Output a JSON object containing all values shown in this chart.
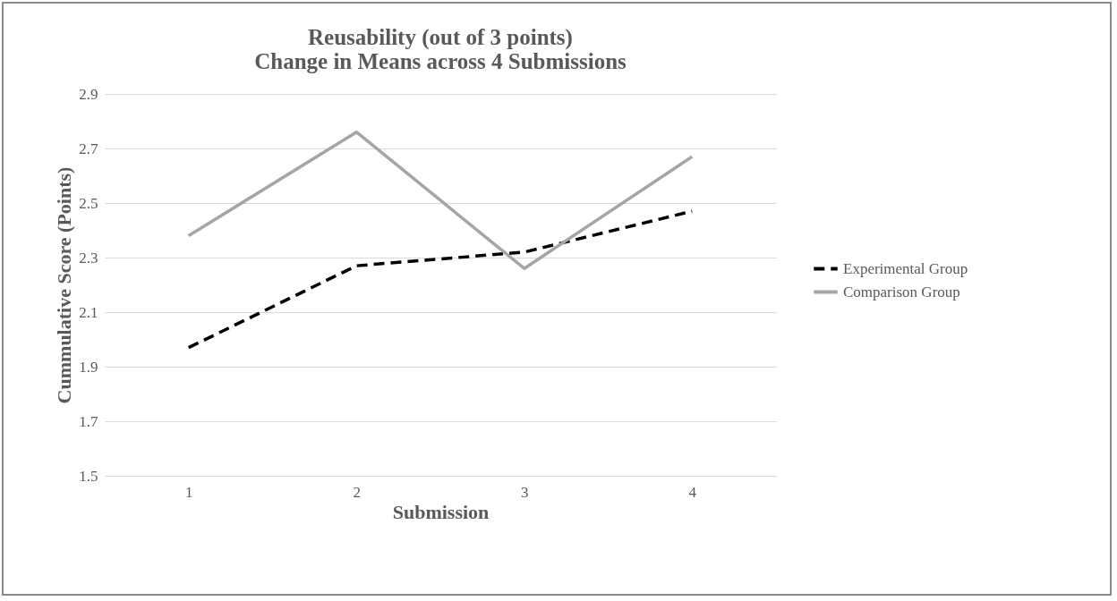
{
  "chart_data": {
    "type": "line",
    "title": "Reusability (out of 3 points)",
    "subtitle": "Change in Means across 4 Submissions",
    "xlabel": "Submission",
    "ylabel": "Cummulative Score (Points)",
    "categories": [
      "1",
      "2",
      "3",
      "4"
    ],
    "series": [
      {
        "name": "Experimental Group",
        "color": "#000000",
        "line_style": "dashed",
        "values": [
          1.97,
          2.27,
          2.32,
          2.47
        ]
      },
      {
        "name": "Comparison Group",
        "color": "#a5a5a5",
        "line_style": "solid",
        "values": [
          2.38,
          2.76,
          2.26,
          2.67
        ]
      }
    ],
    "ylim": [
      1.5,
      2.9
    ],
    "yticks": [
      1.5,
      1.7,
      1.9,
      2.1,
      2.3,
      2.5,
      2.7,
      2.9
    ],
    "grid": "y",
    "legend": "right",
    "marker": "none"
  }
}
